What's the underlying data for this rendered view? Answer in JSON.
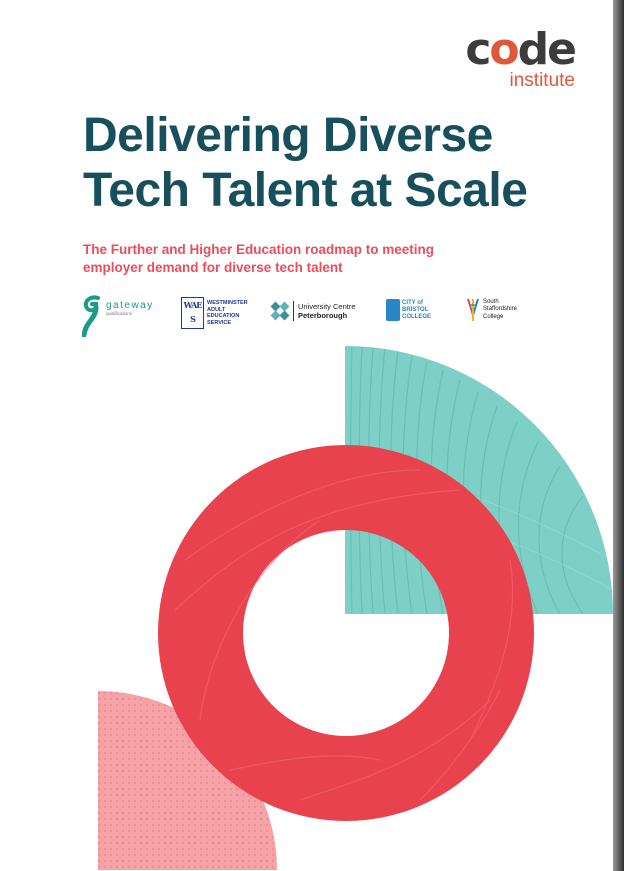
{
  "brand": {
    "word_pre": "c",
    "word_o": "o",
    "word_post": "de",
    "sub": "institute",
    "colors": {
      "dark": "#3c3c3c",
      "accent": "#e0573b"
    }
  },
  "title_lines": [
    "Delivering Diverse",
    "Tech Talent at Scale"
  ],
  "subtitle_lines": [
    "The Further and Higher Education roadmap to meeting",
    "employer demand for diverse tech talent"
  ],
  "partners": {
    "gateway": {
      "name": "gateway",
      "tag": "qualifications",
      "icon": "gateway-g-icon"
    },
    "westminster": {
      "mark": "WAES",
      "lines": [
        "WESTMINSTER",
        "ADULT",
        "EDUCATION",
        "SERVICE"
      ]
    },
    "peterborough": {
      "line1": "University Centre",
      "line2": "Peterborough"
    },
    "bristol": {
      "lines": [
        "CITY of",
        "BRISTOL",
        "COLLEGE"
      ]
    },
    "staffordshire": {
      "lines": [
        "South",
        "Staffordshire",
        "College"
      ]
    }
  },
  "colors": {
    "title": "#17505c",
    "subtitle": "#e84e5c",
    "ring": "#e8424f",
    "teal": "#7ecfc6",
    "pink": "#f6a3a8"
  }
}
